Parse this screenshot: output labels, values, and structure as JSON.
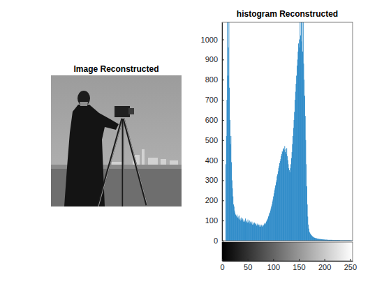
{
  "chart_data": [
    {
      "type": "image",
      "title": "Image Reconstructed"
    },
    {
      "type": "histogram",
      "title": "histogram Reconstructed",
      "color": "#0072bd",
      "bins": [
        0,
        1,
        2,
        3,
        4,
        5,
        6,
        7,
        8,
        9,
        10,
        11,
        12,
        13,
        14,
        15,
        16,
        17,
        18,
        19,
        20,
        21,
        22,
        23,
        24,
        25,
        26,
        27,
        28,
        29,
        30,
        31,
        32,
        33,
        34,
        35,
        36,
        37,
        38,
        39,
        40,
        41,
        42,
        43,
        44,
        45,
        46,
        47,
        48,
        49,
        50,
        51,
        52,
        53,
        54,
        55,
        56,
        57,
        58,
        59,
        60,
        61,
        62,
        63,
        64,
        65,
        66,
        67,
        68,
        69,
        70,
        71,
        72,
        73,
        74,
        75,
        76,
        77,
        78,
        79,
        80,
        81,
        82,
        83,
        84,
        85,
        86,
        87,
        88,
        89,
        90,
        91,
        92,
        93,
        94,
        95,
        96,
        97,
        98,
        99,
        100,
        101,
        102,
        103,
        104,
        105,
        106,
        107,
        108,
        109,
        110,
        111,
        112,
        113,
        114,
        115,
        116,
        117,
        118,
        119,
        120,
        121,
        122,
        123,
        124,
        125,
        126,
        127,
        128,
        129,
        130,
        131,
        132,
        133,
        134,
        135,
        136,
        137,
        138,
        139,
        140,
        141,
        142,
        143,
        144,
        145,
        146,
        147,
        148,
        149,
        150,
        151,
        152,
        153,
        154,
        155,
        156,
        157,
        158,
        159,
        160,
        161,
        162,
        163,
        164,
        165,
        166,
        167,
        168,
        169,
        170,
        171,
        172,
        173,
        174,
        175,
        176,
        177,
        178,
        179,
        180,
        181,
        182,
        183,
        184,
        185,
        186,
        187,
        188,
        189,
        190,
        191,
        192,
        193,
        194,
        195,
        196,
        197,
        198,
        199,
        200,
        201,
        202,
        203,
        204,
        205,
        206,
        207,
        208,
        209,
        210,
        211,
        212,
        213,
        214,
        215,
        216,
        217,
        218,
        219,
        220,
        221,
        222,
        223,
        224,
        225,
        226,
        227,
        228,
        229,
        230,
        231,
        232,
        233,
        234,
        235,
        236,
        237,
        238,
        239,
        240,
        241,
        242,
        243,
        244,
        245,
        246,
        247,
        248,
        249,
        250,
        251,
        252,
        253,
        254,
        255,
        256
      ],
      "counts": [
        0,
        0,
        0,
        0,
        0,
        0,
        0,
        380,
        520,
        700,
        1090,
        820,
        960,
        1090,
        760,
        600,
        480,
        520,
        390,
        300,
        260,
        220,
        180,
        170,
        150,
        140,
        130,
        125,
        120,
        130,
        115,
        120,
        110,
        125,
        105,
        110,
        100,
        115,
        105,
        100,
        110,
        95,
        105,
        100,
        95,
        110,
        90,
        100,
        95,
        90,
        105,
        95,
        90,
        100,
        85,
        95,
        90,
        85,
        95,
        80,
        90,
        85,
        80,
        90,
        85,
        80,
        85,
        75,
        80,
        85,
        75,
        80,
        70,
        80,
        75,
        70,
        80,
        75,
        70,
        75,
        80,
        75,
        85,
        80,
        90,
        85,
        95,
        100,
        105,
        110,
        120,
        125,
        135,
        140,
        150,
        160,
        170,
        180,
        195,
        205,
        220,
        235,
        250,
        260,
        275,
        290,
        300,
        320,
        330,
        345,
        360,
        370,
        385,
        395,
        405,
        420,
        430,
        445,
        440,
        455,
        460,
        450,
        470,
        440,
        455,
        430,
        460,
        420,
        400,
        380,
        360,
        350,
        340,
        360,
        380,
        410,
        440,
        480,
        520,
        560,
        600,
        640,
        700,
        740,
        780,
        820,
        870,
        900,
        940,
        980,
        1000,
        960,
        1090,
        1020,
        1090,
        990,
        1090,
        940,
        1090,
        880,
        800,
        720,
        620,
        500,
        380,
        270,
        180,
        120,
        80,
        60,
        45,
        40,
        35,
        30,
        28,
        25,
        22,
        20,
        18,
        16,
        15,
        14,
        13,
        12,
        12,
        11,
        10,
        10,
        9,
        9,
        8,
        8,
        8,
        7,
        7,
        7,
        6,
        6,
        6,
        6,
        5,
        5,
        5,
        5,
        5,
        5,
        4,
        4,
        4,
        4,
        4,
        4,
        4,
        4,
        4,
        4,
        3,
        3,
        3,
        3,
        3,
        3,
        3,
        3,
        3,
        3,
        3,
        3,
        3,
        3,
        2,
        2,
        2,
        2,
        2,
        2,
        2,
        2,
        2,
        2,
        2,
        2,
        2,
        2,
        2,
        2,
        2,
        2,
        2,
        2,
        2,
        1,
        1,
        1,
        1,
        1
      ],
      "xlim": [
        0,
        255
      ],
      "xticks": [
        0,
        50,
        100,
        150,
        200,
        250
      ],
      "ylim": [
        0,
        1085
      ],
      "yticks": [
        0,
        100,
        200,
        300,
        400,
        500,
        600,
        700,
        800,
        900,
        1000
      ],
      "grid": false
    }
  ]
}
